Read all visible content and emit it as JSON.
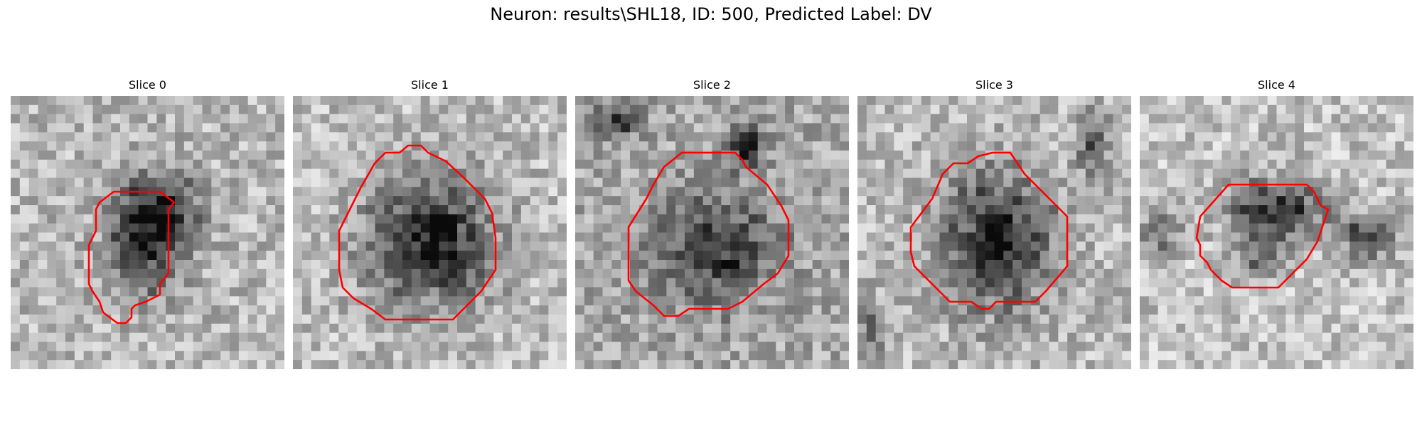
{
  "figure": {
    "title": "Neuron: results\\SHL18, ID: 500, Predicted Label: DV"
  },
  "colors": {
    "contour": "#ff0000",
    "background": "#ffffff"
  },
  "panels": [
    {
      "title": "Slice 0"
    },
    {
      "title": "Slice 1"
    },
    {
      "title": "Slice 2"
    },
    {
      "title": "Slice 3"
    },
    {
      "title": "Slice 4"
    }
  ]
}
